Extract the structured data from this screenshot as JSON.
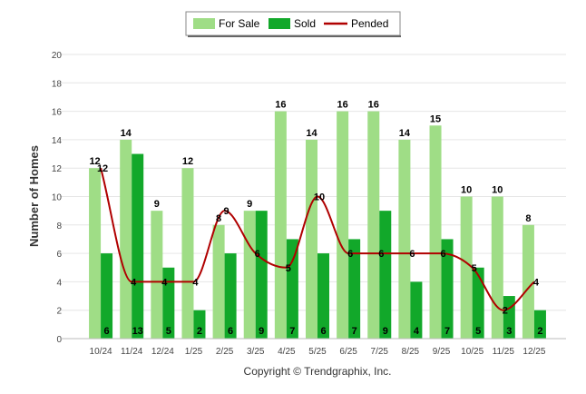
{
  "chart_data": {
    "type": "bar",
    "categories": [
      "10/24",
      "11/24",
      "12/24",
      "1/25",
      "2/25",
      "3/25",
      "4/25",
      "5/25",
      "6/25",
      "7/25",
      "8/25",
      "9/25",
      "10/25",
      "11/25",
      "12/25"
    ],
    "series": [
      {
        "name": "For Sale",
        "type": "bar",
        "color": "#9fdd86",
        "values": [
          12,
          14,
          9,
          12,
          8,
          9,
          16,
          14,
          16,
          16,
          14,
          15,
          10,
          10,
          8
        ]
      },
      {
        "name": "Sold",
        "type": "bar",
        "color": "#12a82a",
        "values": [
          6,
          13,
          5,
          2,
          6,
          9,
          7,
          6,
          7,
          9,
          4,
          7,
          5,
          3,
          2
        ]
      },
      {
        "name": "Pended",
        "type": "line",
        "color": "#b00000",
        "values": [
          12,
          4,
          4,
          4,
          9,
          6,
          5,
          10,
          6,
          6,
          6,
          6,
          5,
          2,
          4
        ]
      }
    ],
    "ylabel": "Number of Homes",
    "xlabel": "",
    "ylim": [
      0,
      20
    ],
    "yticks": [
      0,
      2,
      4,
      6,
      8,
      10,
      12,
      14,
      16,
      18,
      20
    ],
    "grid": true,
    "legend_position": "top-center"
  },
  "footer": {
    "copyright": "Copyright © Trendgraphix, Inc."
  }
}
